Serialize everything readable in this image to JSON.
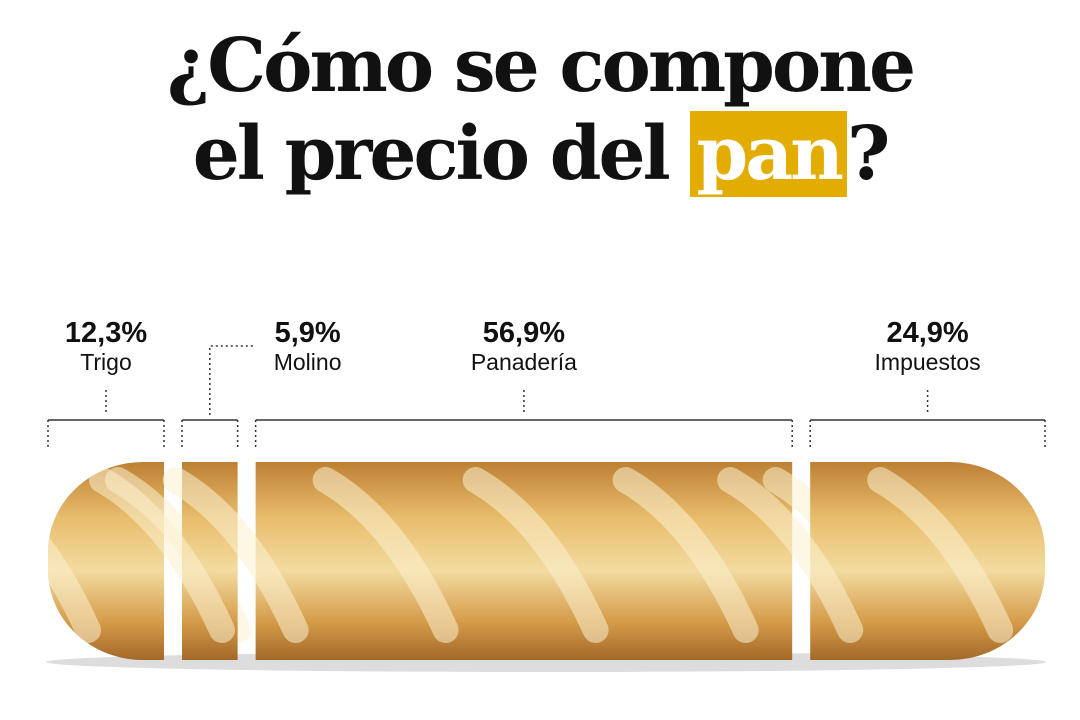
{
  "chart_data": {
    "type": "proportion-bar",
    "title": [
      "¿Cómo se compone",
      "el precio del pan?"
    ],
    "title_highlight": "pan",
    "highlight_color": "#e2ad00",
    "categories": [
      "Trigo",
      "Molino",
      "Panadería",
      "Impuestos"
    ],
    "values": [
      12.3,
      5.9,
      56.9,
      24.9
    ],
    "value_labels": [
      "12,3%",
      "5,9%",
      "56,9%",
      "24,9%"
    ],
    "color": "#d9a04a"
  }
}
